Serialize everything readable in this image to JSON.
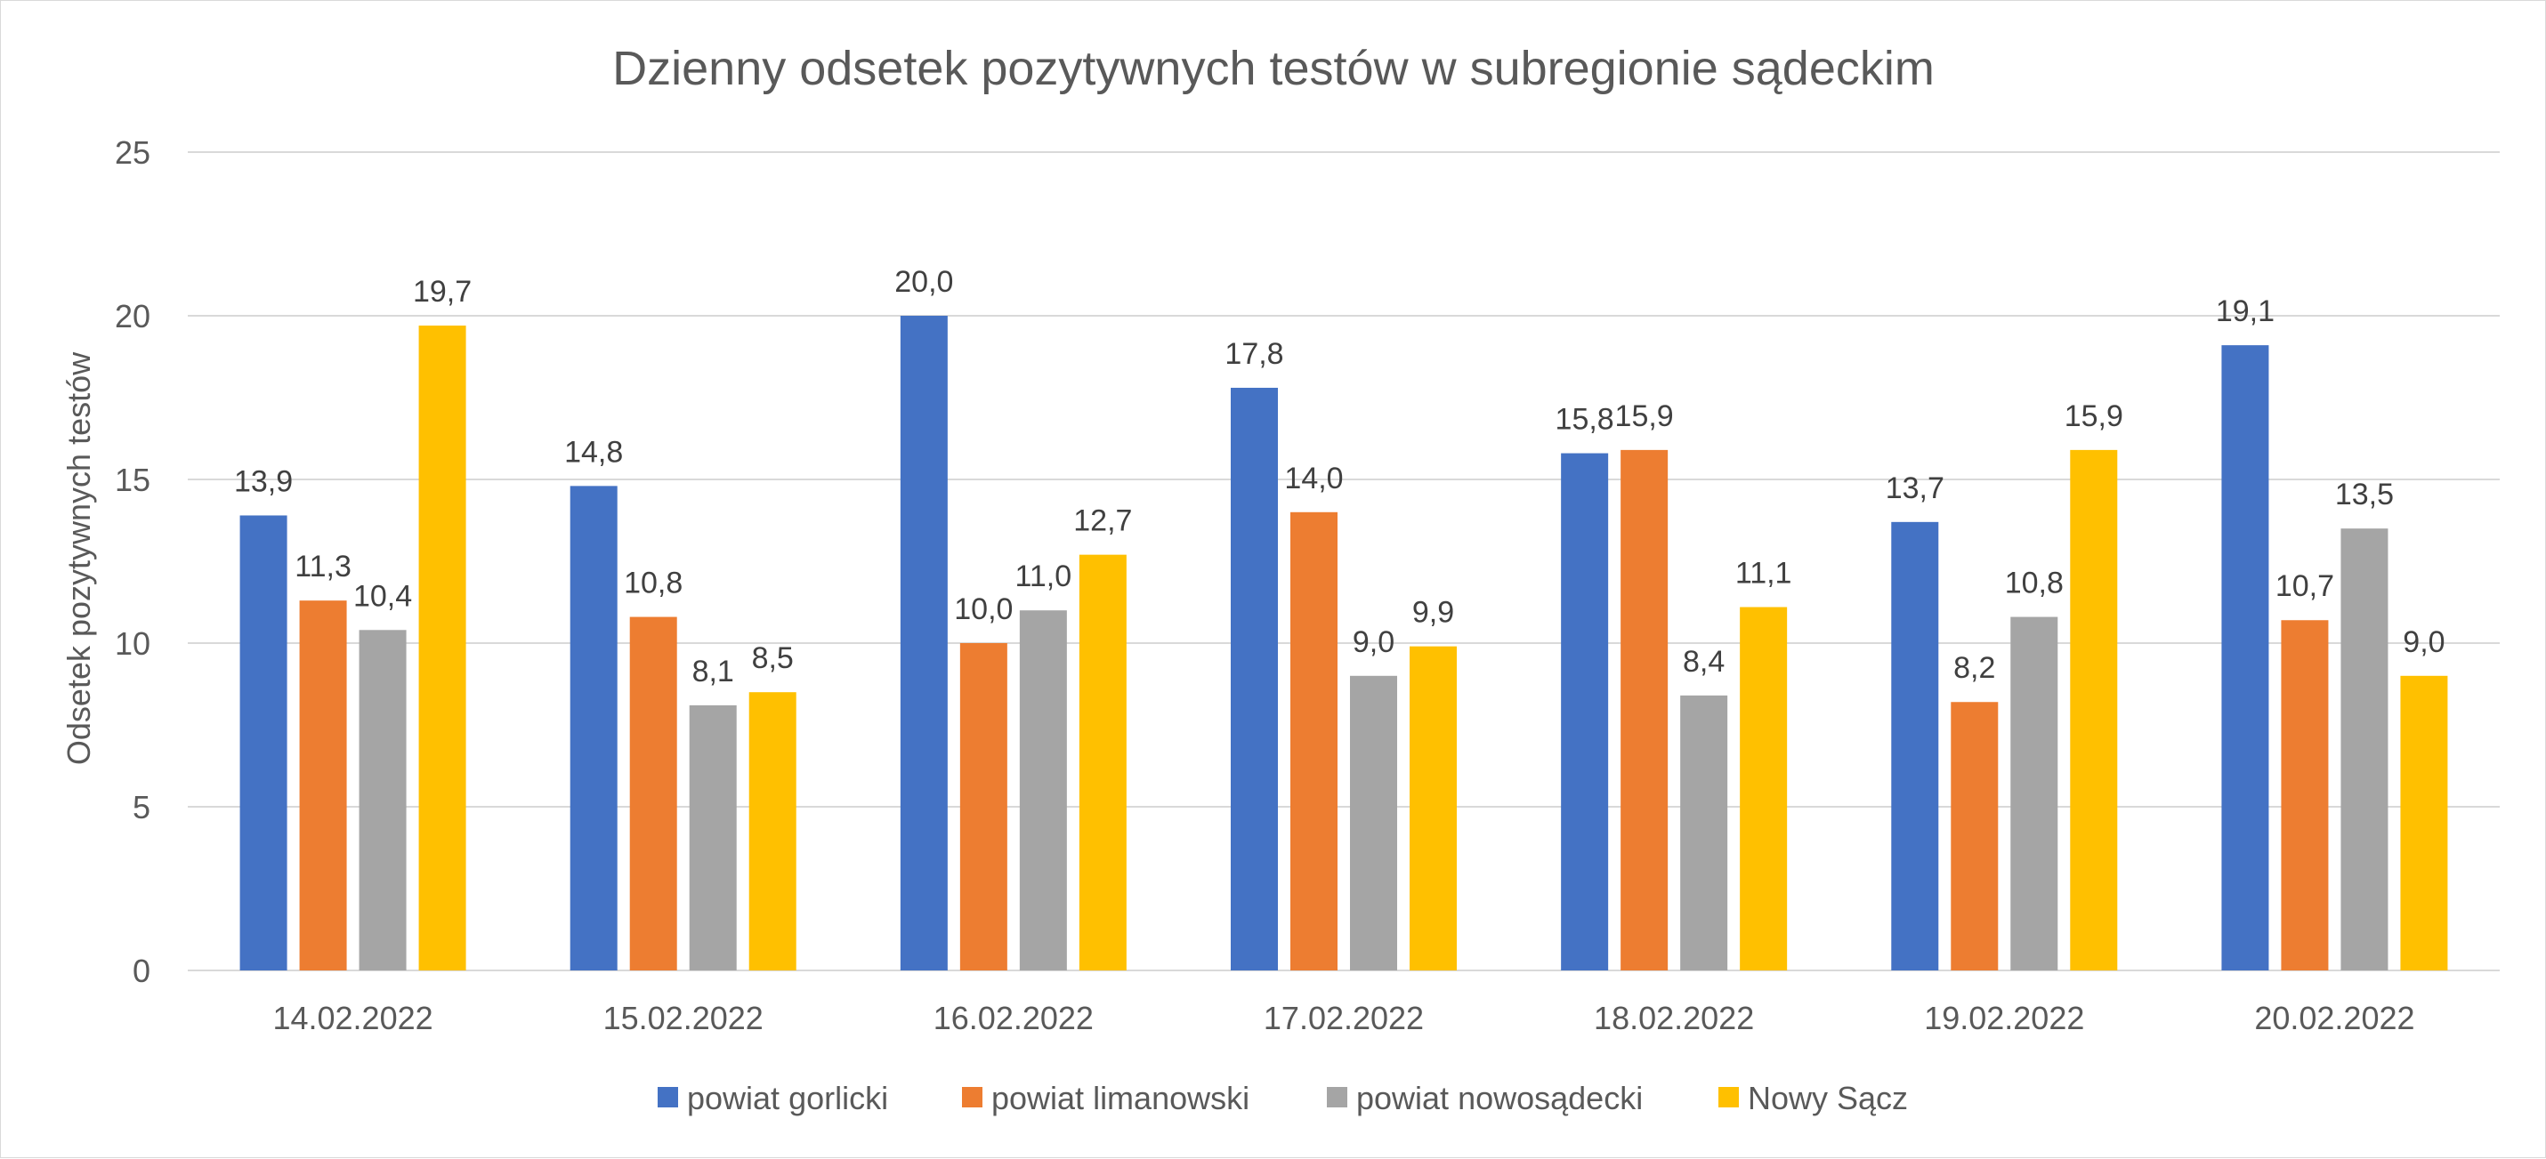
{
  "chart_data": {
    "type": "bar",
    "title": "Dzienny odsetek pozytywnych testów w subregionie sądeckim",
    "xlabel": "",
    "ylabel": "Odsetek pozytywnych testów",
    "ylim": [
      0,
      25
    ],
    "yticks": [
      0,
      5,
      10,
      15,
      20,
      25
    ],
    "grid": true,
    "legend_position": "bottom",
    "categories": [
      "14.02.2022",
      "15.02.2022",
      "16.02.2022",
      "17.02.2022",
      "18.02.2022",
      "19.02.2022",
      "20.02.2022"
    ],
    "series": [
      {
        "name": "powiat gorlicki",
        "color": "#4472c4",
        "values": [
          13.9,
          14.8,
          20.0,
          17.8,
          15.8,
          13.7,
          19.1
        ],
        "labels": [
          "13,9",
          "14,8",
          "20,0",
          "17,8",
          "15,8",
          "13,7",
          "19,1"
        ]
      },
      {
        "name": "powiat limanowski",
        "color": "#ed7d31",
        "values": [
          11.3,
          10.8,
          10.0,
          14.0,
          15.9,
          8.2,
          10.7
        ],
        "labels": [
          "11,3",
          "10,8",
          "10,0",
          "14,0",
          "15,9",
          "8,2",
          "10,7"
        ]
      },
      {
        "name": "powiat nowosądecki",
        "color": "#a5a5a5",
        "values": [
          10.4,
          8.1,
          11.0,
          9.0,
          8.4,
          10.8,
          13.5
        ],
        "labels": [
          "10,4",
          "8,1",
          "11,0",
          "9,0",
          "8,4",
          "10,8",
          "13,5"
        ]
      },
      {
        "name": "Nowy Sącz",
        "color": "#ffc000",
        "values": [
          19.7,
          8.5,
          12.7,
          9.9,
          11.1,
          15.9,
          9.0
        ],
        "labels": [
          "19,7",
          "8,5",
          "12,7",
          "9,9",
          "11,1",
          "15,9",
          "9,0"
        ]
      }
    ]
  }
}
